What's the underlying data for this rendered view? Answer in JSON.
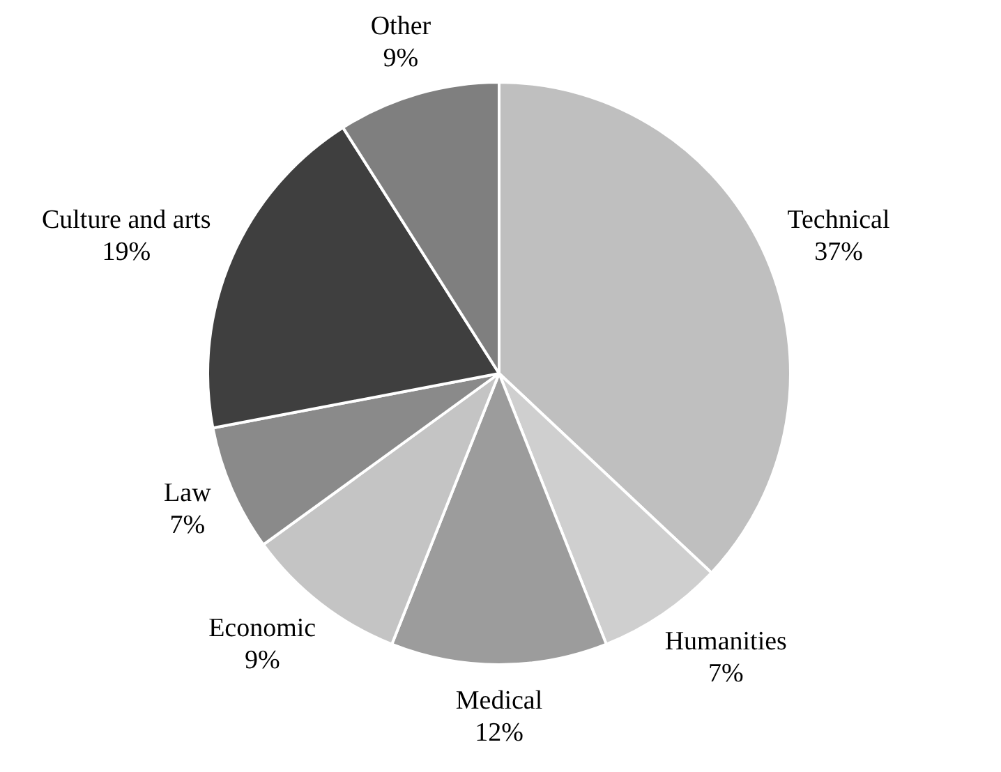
{
  "chart_data": {
    "type": "pie",
    "categories": [
      "Technical",
      "Humanities",
      "Medical",
      "Economic",
      "Law",
      "Culture and arts",
      "Other"
    ],
    "values": [
      37,
      7,
      12,
      9,
      7,
      19,
      9
    ],
    "value_labels": [
      "37%",
      "7%",
      "12%",
      "9%",
      "7%",
      "19%",
      "9%"
    ],
    "colors": [
      "#bfbfbf",
      "#cfcfcf",
      "#9c9c9c",
      "#c4c4c4",
      "#8a8a8a",
      "#3f3f3f",
      "#7f7f7f"
    ],
    "legend": false
  }
}
